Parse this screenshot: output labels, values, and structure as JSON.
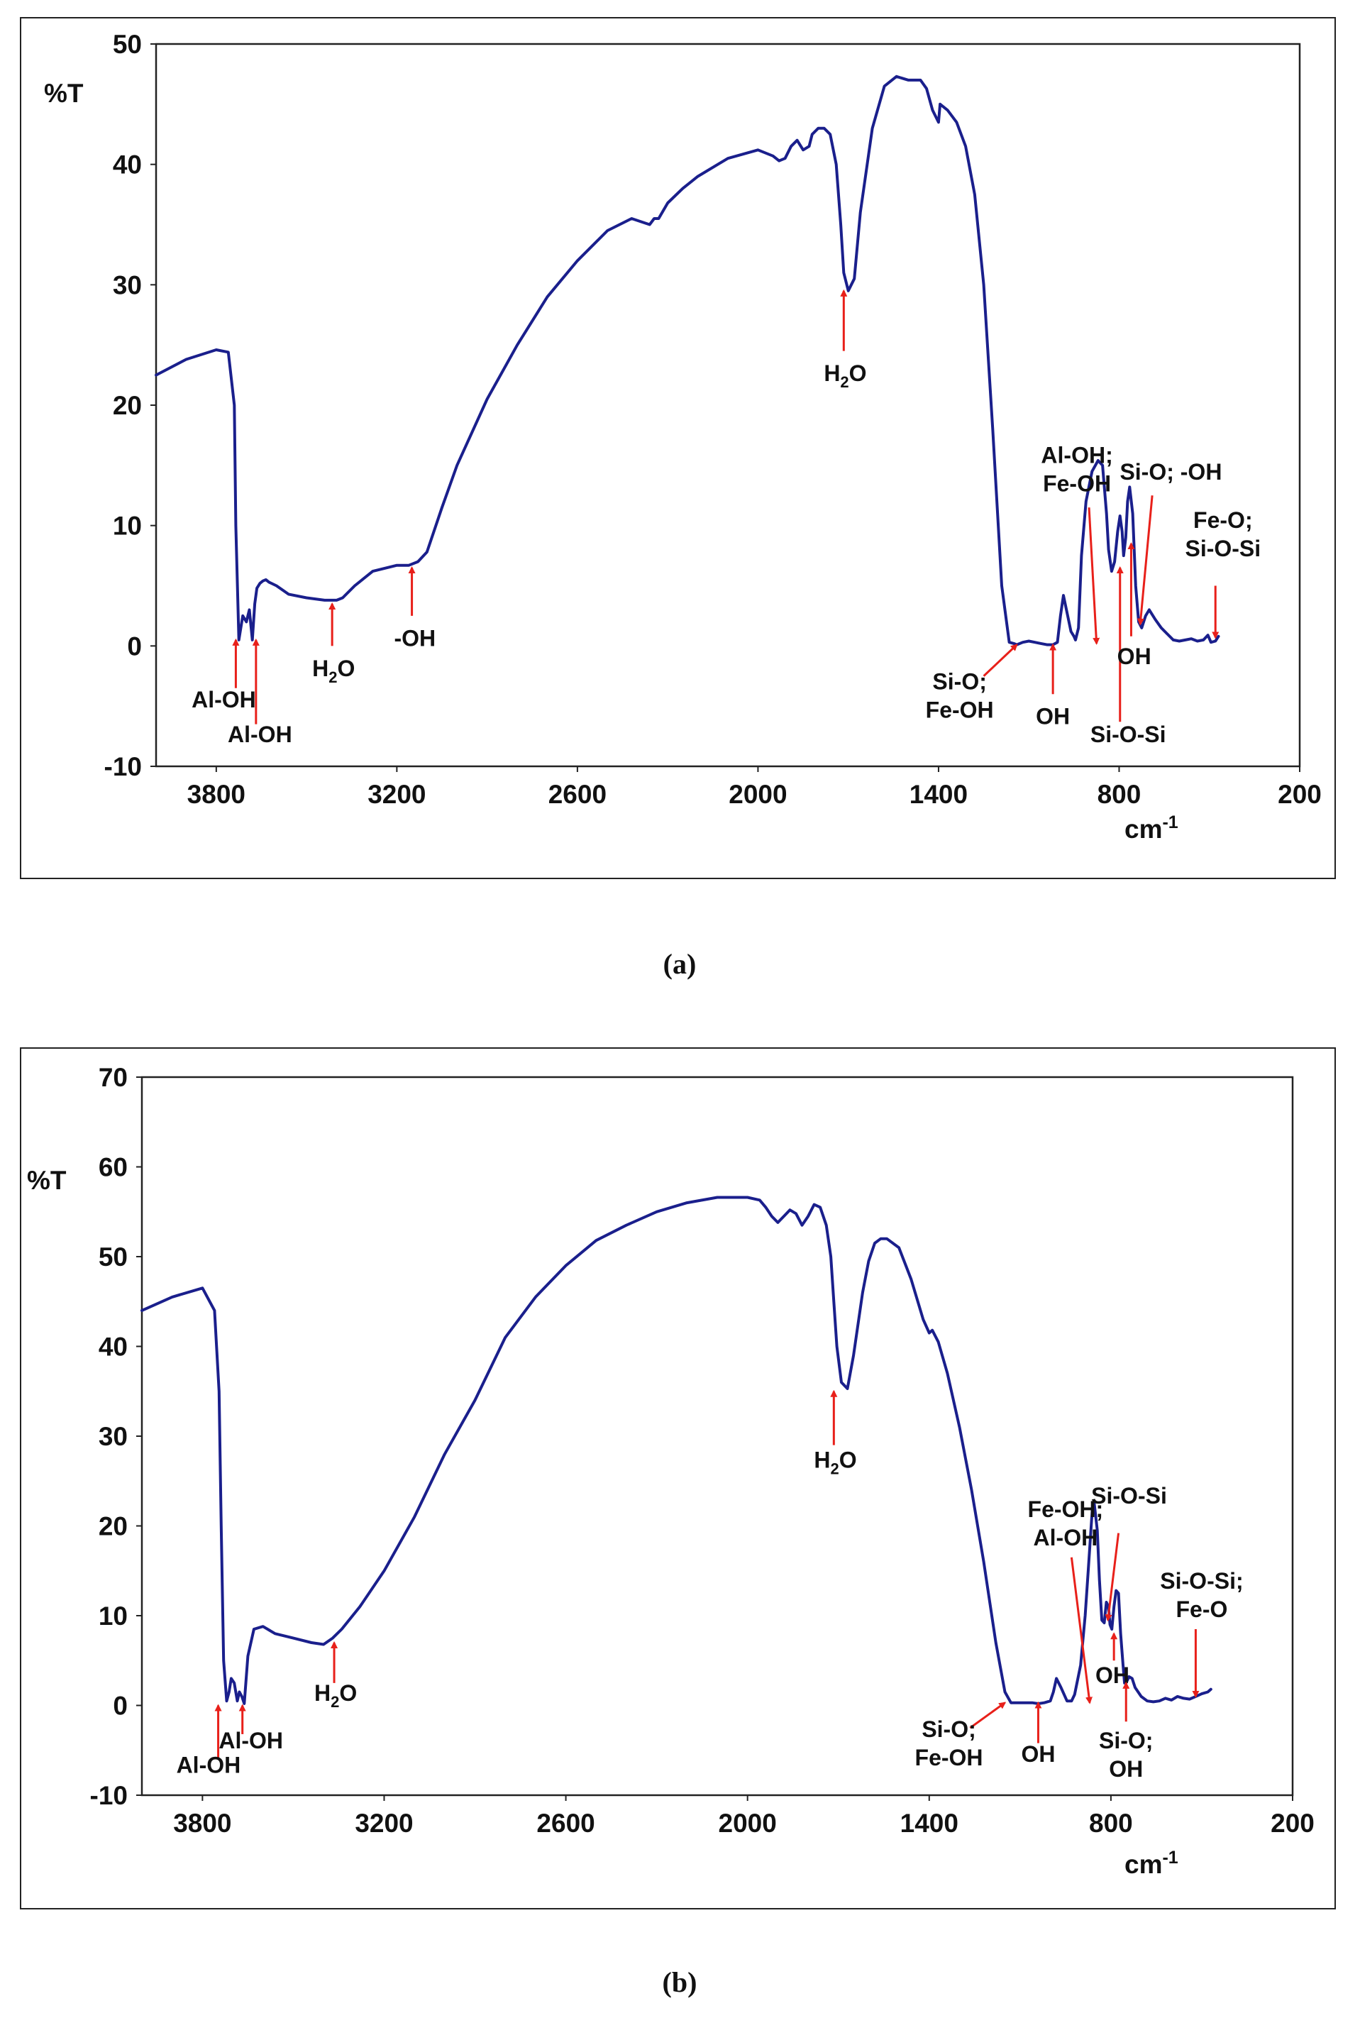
{
  "chart_data": [
    {
      "type": "line",
      "panel_label": "(a)",
      "ylabel": "%T",
      "xlabel": "cm",
      "xlabel_sup": "-1",
      "xlim": [
        4000,
        200
      ],
      "ylim": [
        -10,
        50
      ],
      "xticks": [
        3800,
        3200,
        2600,
        2000,
        1400,
        800,
        200
      ],
      "yticks": [
        50,
        40,
        30,
        20,
        10,
        0,
        -10
      ],
      "line_color": "#1a1f8c",
      "arrow_color": "#e8201a",
      "series": [
        {
          "name": "spectrum a",
          "x": [
            4000,
            3900,
            3800,
            3760,
            3740,
            3735,
            3725,
            3712,
            3700,
            3690,
            3680,
            3672,
            3665,
            3655,
            3645,
            3635,
            3625,
            3600,
            3560,
            3500,
            3440,
            3400,
            3380,
            3340,
            3280,
            3200,
            3160,
            3130,
            3100,
            3050,
            3000,
            2900,
            2800,
            2700,
            2600,
            2500,
            2420,
            2360,
            2345,
            2330,
            2300,
            2250,
            2200,
            2100,
            2000,
            1950,
            1930,
            1910,
            1890,
            1870,
            1850,
            1830,
            1820,
            1800,
            1780,
            1760,
            1740,
            1725,
            1715,
            1700,
            1680,
            1660,
            1620,
            1580,
            1540,
            1500,
            1460,
            1440,
            1420,
            1400,
            1395,
            1385,
            1370,
            1340,
            1310,
            1280,
            1250,
            1220,
            1190,
            1165,
            1150,
            1140,
            1120,
            1100,
            1080,
            1060,
            1040,
            1020,
            1005,
            995,
            985,
            975,
            960,
            950,
            945,
            935,
            925,
            910,
            890,
            870,
            855,
            842,
            835,
            825,
            815,
            805,
            797,
            790,
            785,
            778,
            772,
            765,
            755,
            745,
            735,
            725,
            712,
            700,
            680,
            660,
            640,
            620,
            600,
            580,
            560,
            540,
            520,
            505,
            495,
            480,
            470
          ],
          "y": [
            22.5,
            23.8,
            24.6,
            24.4,
            20,
            10,
            0.5,
            2.5,
            2.0,
            3.0,
            0.5,
            3.5,
            4.8,
            5.2,
            5.4,
            5.5,
            5.3,
            5.0,
            4.3,
            4.0,
            3.8,
            3.8,
            4.0,
            5.0,
            6.2,
            6.7,
            6.7,
            7.0,
            7.8,
            11.5,
            15,
            20.5,
            25,
            29,
            32,
            34.5,
            35.5,
            35,
            35.5,
            35.5,
            36.8,
            38,
            39,
            40.5,
            41.2,
            40.7,
            40.3,
            40.5,
            41.5,
            42,
            41.2,
            41.5,
            42.5,
            43.0,
            43.0,
            42.5,
            40,
            35,
            31,
            29.5,
            30.5,
            36,
            43,
            46.5,
            47.3,
            47.0,
            47.0,
            46.3,
            44.5,
            43.5,
            45,
            44.8,
            44.5,
            43.5,
            41.5,
            37.5,
            30,
            18,
            5,
            0.3,
            0.2,
            0.1,
            0.3,
            0.4,
            0.3,
            0.2,
            0.1,
            0.1,
            0.3,
            2.5,
            4.2,
            3.0,
            1.2,
            0.8,
            0.5,
            1.5,
            7.5,
            12,
            14.5,
            15.4,
            15.0,
            11,
            8,
            6.2,
            7.0,
            9.5,
            10.8,
            9.5,
            7.5,
            9.0,
            12.0,
            13.2,
            11,
            5,
            2.0,
            1.5,
            2.5,
            3.0,
            2.2,
            1.5,
            1.0,
            0.5,
            0.4,
            0.5,
            0.6,
            0.4,
            0.5,
            0.9,
            0.3,
            0.4,
            0.8
          ]
        }
      ],
      "annotations": [
        {
          "lines": [
            "Al-OH"
          ],
          "tip_x": 3735,
          "tip_y": 0.5,
          "tail_x": 3735,
          "tail_y": -3.5,
          "text_x": 3775,
          "text_y": -5.1
        },
        {
          "lines": [
            "Al-OH"
          ],
          "tip_x": 3668,
          "tip_y": 0.5,
          "tail_x": 3668,
          "tail_y": -6.5,
          "text_x": 3655,
          "text_y": -8.0
        },
        {
          "lines": [
            "H",
            "O"
          ],
          "sub": "2",
          "tip_x": 3415,
          "tip_y": 3.5,
          "tail_x": 3415,
          "tail_y": 0.0,
          "text_x": 3410,
          "text_y": -2.5
        },
        {
          "lines": [
            "-OH"
          ],
          "tip_x": 3150,
          "tip_y": 6.5,
          "tail_x": 3150,
          "tail_y": 2.5,
          "text_x": 3140,
          "text_y": 0.0
        },
        {
          "lines": [
            "H",
            "O"
          ],
          "sub": "2",
          "tip_x": 1715,
          "tip_y": 29.5,
          "tail_x": 1715,
          "tail_y": 24.5,
          "text_x": 1710,
          "text_y": 22.0
        },
        {
          "lines": [
            "Al-OH;",
            "Fe-OH"
          ],
          "tip_x": 875,
          "tip_y": 0.2,
          "tail_x": 900,
          "tail_y": 11.5,
          "text_x": 940,
          "text_y": 15.2
        },
        {
          "lines": [
            "Si-O;  -OH"
          ],
          "tip_x": 730,
          "tip_y": 1.8,
          "tail_x": 690,
          "tail_y": 12.5,
          "text_x": 628,
          "text_y": 13.8
        },
        {
          "lines": [
            "Fe-O;",
            "Si-O-Si"
          ],
          "tip_x": 480,
          "tip_y": 0.7,
          "tail_x": 480,
          "tail_y": 5.0,
          "text_x": 455,
          "text_y": 9.8
        },
        {
          "lines": [
            "Si-O;",
            "Fe-OH"
          ],
          "tip_x": 1140,
          "tip_y": 0.1,
          "tail_x": 1250,
          "tail_y": -2.5,
          "text_x": 1330,
          "text_y": -3.6
        },
        {
          "lines": [
            "OH"
          ],
          "tip_x": 1020,
          "tip_y": 0.1,
          "tail_x": 1020,
          "tail_y": -4.0,
          "text_x": 1020,
          "text_y": -6.5
        },
        {
          "lines": [
            "Si-O-Si"
          ],
          "tip_x": 797,
          "tip_y": 6.5,
          "tail_x": 797,
          "tail_y": -6.3,
          "text_x": 770,
          "text_y": -8.0
        },
        {
          "lines": [
            "OH"
          ],
          "tip_x": 760,
          "tip_y": 8.5,
          "tail_x": 760,
          "tail_y": 0.8,
          "text_x": 750,
          "text_y": -1.5
        }
      ]
    },
    {
      "type": "line",
      "panel_label": "(b)",
      "ylabel": "%T",
      "xlabel": "cm",
      "xlabel_sup": "-1",
      "xlim": [
        4000,
        200
      ],
      "ylim": [
        -10,
        70
      ],
      "xticks": [
        3800,
        3200,
        2600,
        2000,
        1400,
        800,
        200
      ],
      "yticks": [
        70,
        60,
        50,
        40,
        30,
        20,
        10,
        0,
        -10
      ],
      "line_color": "#1a1f8c",
      "arrow_color": "#e8201a",
      "series": [
        {
          "name": "spectrum b",
          "x": [
            4000,
            3900,
            3800,
            3760,
            3745,
            3738,
            3730,
            3720,
            3712,
            3705,
            3695,
            3685,
            3678,
            3670,
            3662,
            3650,
            3630,
            3600,
            3560,
            3500,
            3440,
            3400,
            3370,
            3340,
            3280,
            3200,
            3100,
            3000,
            2900,
            2800,
            2700,
            2600,
            2500,
            2400,
            2300,
            2200,
            2100,
            2000,
            1960,
            1940,
            1920,
            1900,
            1880,
            1860,
            1840,
            1820,
            1800,
            1780,
            1760,
            1740,
            1725,
            1715,
            1705,
            1690,
            1670,
            1650,
            1620,
            1600,
            1580,
            1560,
            1540,
            1500,
            1460,
            1420,
            1400,
            1390,
            1370,
            1340,
            1300,
            1260,
            1220,
            1180,
            1150,
            1130,
            1115,
            1100,
            1080,
            1060,
            1040,
            1020,
            1000,
            990,
            980,
            965,
            945,
            930,
            920,
            900,
            885,
            875,
            865,
            860,
            855,
            845,
            838,
            830,
            822,
            815,
            808,
            803,
            797,
            790,
            783,
            775,
            768,
            760,
            755,
            750,
            740,
            730,
            720,
            700,
            680,
            660,
            640,
            620,
            600,
            580,
            560,
            540,
            520,
            500,
            480,
            470
          ],
          "y": [
            44.0,
            45.5,
            46.5,
            44,
            35,
            20,
            5,
            0.5,
            1.5,
            3.0,
            2.5,
            0.5,
            1.5,
            1.0,
            0.2,
            5.5,
            8.5,
            8.8,
            8.0,
            7.5,
            7.0,
            6.8,
            7.5,
            8.5,
            11,
            15,
            21,
            28,
            34,
            41,
            45.5,
            49,
            51.8,
            53.5,
            55,
            56,
            56.6,
            56.6,
            56.3,
            55.5,
            54.5,
            53.8,
            54.5,
            55.2,
            54.8,
            53.5,
            54.5,
            55.8,
            55.5,
            53.5,
            50,
            45,
            40,
            36,
            35.3,
            39,
            46,
            49.5,
            51.5,
            52,
            52,
            51,
            47.5,
            43,
            41.5,
            41.8,
            40.5,
            37,
            31,
            24,
            16,
            7,
            1.5,
            0.3,
            0.3,
            0.3,
            0.3,
            0.3,
            0.2,
            0.3,
            0.5,
            1.5,
            3.0,
            2.0,
            0.5,
            0.5,
            1.2,
            4.5,
            10,
            15,
            20,
            22.5,
            22.5,
            19.5,
            14,
            9.5,
            9.2,
            11.5,
            11.0,
            9.0,
            8.5,
            11,
            12.8,
            12.5,
            8,
            4.5,
            2.5,
            2.5,
            3.2,
            3.0,
            2.0,
            1.0,
            0.5,
            0.4,
            0.5,
            0.8,
            0.6,
            1.0,
            0.8,
            0.7,
            1.0,
            1.3,
            1.5,
            1.8
          ]
        }
      ],
      "annotations": [
        {
          "lines": [
            "Al-OH"
          ],
          "tip_x": 3748,
          "tip_y": 0.0,
          "tail_x": 3748,
          "tail_y": -6.0,
          "text_x": 3780,
          "text_y": -7.5
        },
        {
          "lines": [
            "Al-OH"
          ],
          "tip_x": 3668,
          "tip_y": 0.0,
          "tail_x": 3668,
          "tail_y": -3.2,
          "text_x": 3640,
          "text_y": -4.8
        },
        {
          "lines": [
            "H",
            "O"
          ],
          "sub": "2",
          "tip_x": 3365,
          "tip_y": 7.0,
          "tail_x": 3365,
          "tail_y": 2.5,
          "text_x": 3360,
          "text_y": 0.5
        },
        {
          "lines": [
            "H",
            "O"
          ],
          "sub": "2",
          "tip_x": 1715,
          "tip_y": 35.0,
          "tail_x": 1715,
          "tail_y": 29.0,
          "text_x": 1710,
          "text_y": 26.5
        },
        {
          "lines": [
            "Fe-OH;",
            "Al-OH"
          ],
          "tip_x": 870,
          "tip_y": 0.3,
          "tail_x": 930,
          "tail_y": 16.5,
          "text_x": 950,
          "text_y": 21.0
        },
        {
          "lines": [
            "Si-O-Si"
          ],
          "tip_x": 810,
          "tip_y": 9.5,
          "tail_x": 775,
          "tail_y": 19.2,
          "text_x": 740,
          "text_y": 22.5
        },
        {
          "lines": [
            "Si-O-Si;",
            "Fe-O"
          ],
          "tip_x": 520,
          "tip_y": 1.0,
          "tail_x": 520,
          "tail_y": 8.5,
          "text_x": 500,
          "text_y": 13.0
        },
        {
          "lines": [
            "Si-O;",
            "Fe-OH"
          ],
          "tip_x": 1150,
          "tip_y": 0.3,
          "tail_x": 1265,
          "tail_y": -2.5,
          "text_x": 1335,
          "text_y": -3.5
        },
        {
          "lines": [
            "OH"
          ],
          "tip_x": 1040,
          "tip_y": 0.3,
          "tail_x": 1040,
          "tail_y": -4.2,
          "text_x": 1040,
          "text_y": -6.3
        },
        {
          "lines": [
            "OH"
          ],
          "tip_x": 790,
          "tip_y": 8.0,
          "tail_x": 790,
          "tail_y": 5.0,
          "text_x": 795,
          "text_y": 2.5
        },
        {
          "lines": [
            "Si-O;",
            "OH"
          ],
          "tip_x": 750,
          "tip_y": 2.5,
          "tail_x": 750,
          "tail_y": -1.8,
          "text_x": 750,
          "text_y": -4.8
        }
      ]
    }
  ]
}
